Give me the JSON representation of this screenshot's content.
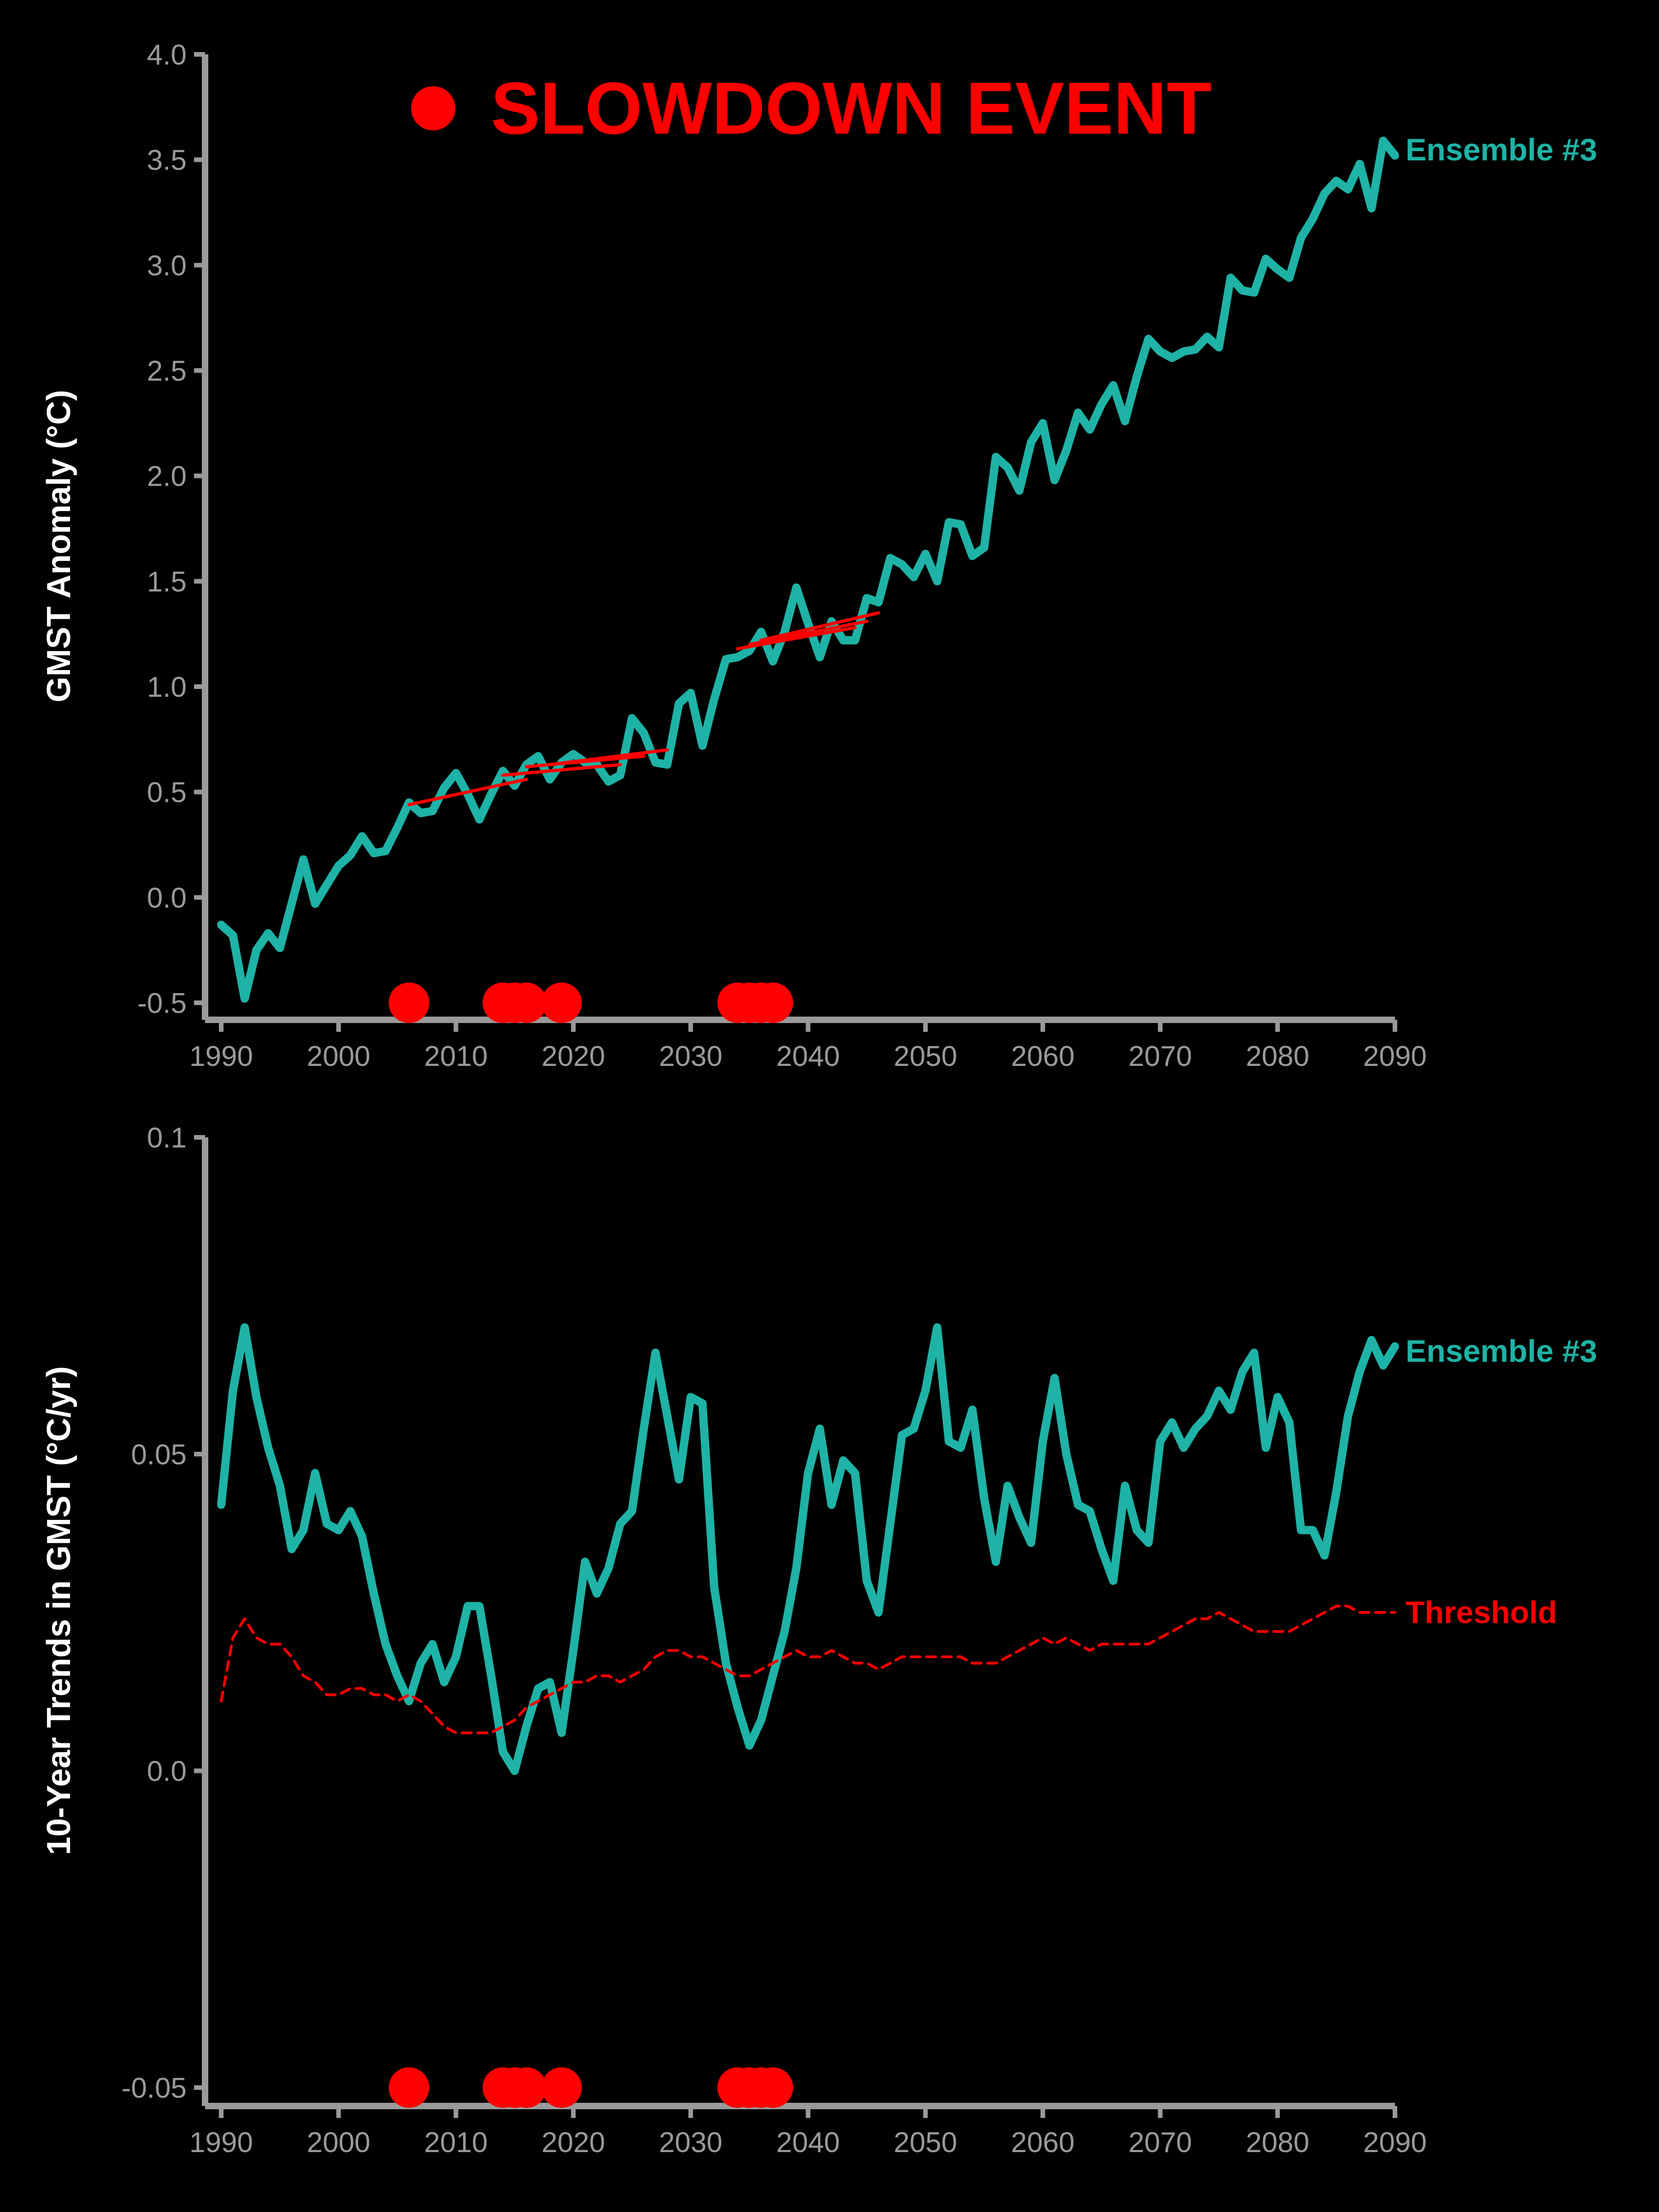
{
  "colors": {
    "ensemble": "#1eb3a6",
    "threshold": "#ff0000",
    "event": "#ff0000",
    "axis": "#9a9a9a",
    "background": "#000000"
  },
  "legend": {
    "label": "SLOWDOWN EVENT"
  },
  "chart_data": [
    {
      "type": "line",
      "ylabel": "GMST Anomaly (°C)",
      "xlim": [
        1990,
        2090
      ],
      "ylim": [
        -0.5,
        4.0
      ],
      "yticks": [
        -0.5,
        0.0,
        0.5,
        1.0,
        1.5,
        2.0,
        2.5,
        3.0,
        3.5,
        4.0
      ],
      "ytick_labels": [
        "-0.5",
        "0.0",
        "0.5",
        "1.0",
        "1.5",
        "2.0",
        "2.5",
        "3.0",
        "3.5",
        "4.0"
      ],
      "xticks": [
        1990,
        2000,
        2010,
        2020,
        2030,
        2040,
        2050,
        2060,
        2070,
        2080,
        2090
      ],
      "xtick_labels": [
        "1990",
        "2000",
        "2010",
        "2020",
        "2030",
        "2040",
        "2050",
        "2060",
        "2070",
        "2080",
        "2090"
      ],
      "series": [
        {
          "name": "Ensemble #3",
          "start_year": 1990,
          "values": [
            -0.13,
            -0.18,
            -0.48,
            -0.25,
            -0.17,
            -0.24,
            -0.03,
            0.18,
            -0.03,
            0.06,
            0.15,
            0.2,
            0.29,
            0.21,
            0.22,
            0.33,
            0.45,
            0.4,
            0.41,
            0.52,
            0.59,
            0.49,
            0.37,
            0.49,
            0.6,
            0.53,
            0.63,
            0.67,
            0.56,
            0.64,
            0.68,
            0.64,
            0.63,
            0.55,
            0.58,
            0.85,
            0.78,
            0.64,
            0.63,
            0.92,
            0.97,
            0.72,
            0.94,
            1.13,
            1.14,
            1.17,
            1.26,
            1.12,
            1.26,
            1.47,
            1.3,
            1.14,
            1.31,
            1.22,
            1.22,
            1.42,
            1.4,
            1.61,
            1.58,
            1.52,
            1.63,
            1.5,
            1.78,
            1.77,
            1.62,
            1.66,
            2.09,
            2.04,
            1.93,
            2.16,
            2.25,
            1.98,
            2.12,
            2.3,
            2.22,
            2.34,
            2.43,
            2.26,
            2.47,
            2.65,
            2.59,
            2.56,
            2.59,
            2.6,
            2.66,
            2.61,
            2.94,
            2.88,
            2.87,
            3.03,
            2.98,
            2.94,
            3.13,
            3.22,
            3.34,
            3.4,
            3.36,
            3.48,
            3.27,
            3.59,
            3.52
          ]
        }
      ],
      "trend_segments": [
        {
          "x": [
            2006,
            2016
          ],
          "y": [
            0.44,
            0.56
          ]
        },
        {
          "x": [
            2014,
            2024
          ],
          "y": [
            0.58,
            0.63
          ]
        },
        {
          "x": [
            2016,
            2026
          ],
          "y": [
            0.62,
            0.67
          ]
        },
        {
          "x": [
            2018,
            2028
          ],
          "y": [
            0.63,
            0.7
          ]
        },
        {
          "x": [
            2034,
            2044
          ],
          "y": [
            1.18,
            1.28
          ]
        },
        {
          "x": [
            2035,
            2045
          ],
          "y": [
            1.2,
            1.31
          ]
        },
        {
          "x": [
            2036,
            2046
          ],
          "y": [
            1.22,
            1.35
          ]
        }
      ],
      "event_years": [
        2006,
        2014,
        2015,
        2016,
        2019,
        2034,
        2035,
        2036,
        2037
      ],
      "event_marker_y": -0.5
    },
    {
      "type": "line",
      "ylabel": "10-Year Trends in GMST (°C/yr)",
      "xlim": [
        1990,
        2090
      ],
      "ylim": [
        -0.05,
        0.1
      ],
      "yticks": [
        -0.05,
        0.0,
        0.05,
        0.1
      ],
      "ytick_labels": [
        "-0.05",
        "0.0",
        "0.05",
        "0.1"
      ],
      "xticks": [
        1990,
        2000,
        2010,
        2020,
        2030,
        2040,
        2050,
        2060,
        2070,
        2080,
        2090
      ],
      "xtick_labels": [
        "1990",
        "2000",
        "2010",
        "2020",
        "2030",
        "2040",
        "2050",
        "2060",
        "2070",
        "2080",
        "2090"
      ],
      "series": [
        {
          "name": "Ensemble #3",
          "start_year": 1990,
          "values": [
            0.042,
            0.06,
            0.07,
            0.059,
            0.051,
            0.045,
            0.035,
            0.038,
            0.047,
            0.039,
            0.038,
            0.041,
            0.037,
            0.028,
            0.02,
            0.015,
            0.011,
            0.017,
            0.02,
            0.014,
            0.018,
            0.026,
            0.026,
            0.015,
            0.003,
            0.0,
            0.007,
            0.013,
            0.014,
            0.006,
            0.019,
            0.033,
            0.028,
            0.032,
            0.039,
            0.041,
            0.054,
            0.066,
            0.056,
            0.046,
            0.059,
            0.058,
            0.029,
            0.017,
            0.01,
            0.004,
            0.008,
            0.015,
            0.022,
            0.032,
            0.047,
            0.054,
            0.042,
            0.049,
            0.047,
            0.03,
            0.025,
            0.039,
            0.053,
            0.054,
            0.06,
            0.07,
            0.052,
            0.051,
            0.057,
            0.043,
            0.033,
            0.045,
            0.04,
            0.036,
            0.052,
            0.062,
            0.05,
            0.042,
            0.041,
            0.035,
            0.03,
            0.045,
            0.038,
            0.036,
            0.052,
            0.055,
            0.051,
            0.054,
            0.056,
            0.06,
            0.057,
            0.063,
            0.066,
            0.051,
            0.059,
            0.055,
            0.038,
            0.038,
            0.034,
            0.044,
            0.056,
            0.063,
            0.068,
            0.064,
            0.067
          ]
        },
        {
          "name": "Threshold",
          "start_year": 1990,
          "values": [
            0.011,
            0.021,
            0.024,
            0.021,
            0.02,
            0.02,
            0.018,
            0.015,
            0.014,
            0.012,
            0.012,
            0.013,
            0.013,
            0.012,
            0.012,
            0.011,
            0.012,
            0.011,
            0.009,
            0.007,
            0.006,
            0.006,
            0.006,
            0.006,
            0.007,
            0.008,
            0.01,
            0.011,
            0.012,
            0.013,
            0.014,
            0.014,
            0.015,
            0.015,
            0.014,
            0.015,
            0.016,
            0.018,
            0.019,
            0.019,
            0.018,
            0.018,
            0.017,
            0.016,
            0.015,
            0.015,
            0.016,
            0.017,
            0.018,
            0.019,
            0.018,
            0.018,
            0.019,
            0.018,
            0.017,
            0.017,
            0.016,
            0.017,
            0.018,
            0.018,
            0.018,
            0.018,
            0.018,
            0.018,
            0.017,
            0.017,
            0.017,
            0.018,
            0.019,
            0.02,
            0.021,
            0.02,
            0.021,
            0.02,
            0.019,
            0.02,
            0.02,
            0.02,
            0.02,
            0.02,
            0.021,
            0.022,
            0.023,
            0.024,
            0.024,
            0.025,
            0.024,
            0.023,
            0.022,
            0.022,
            0.022,
            0.022,
            0.023,
            0.024,
            0.025,
            0.026,
            0.026,
            0.025,
            0.025,
            0.025,
            0.025
          ]
        }
      ],
      "event_years": [
        2006,
        2014,
        2015,
        2016,
        2019,
        2034,
        2035,
        2036,
        2037
      ],
      "event_marker_y": -0.05
    }
  ]
}
